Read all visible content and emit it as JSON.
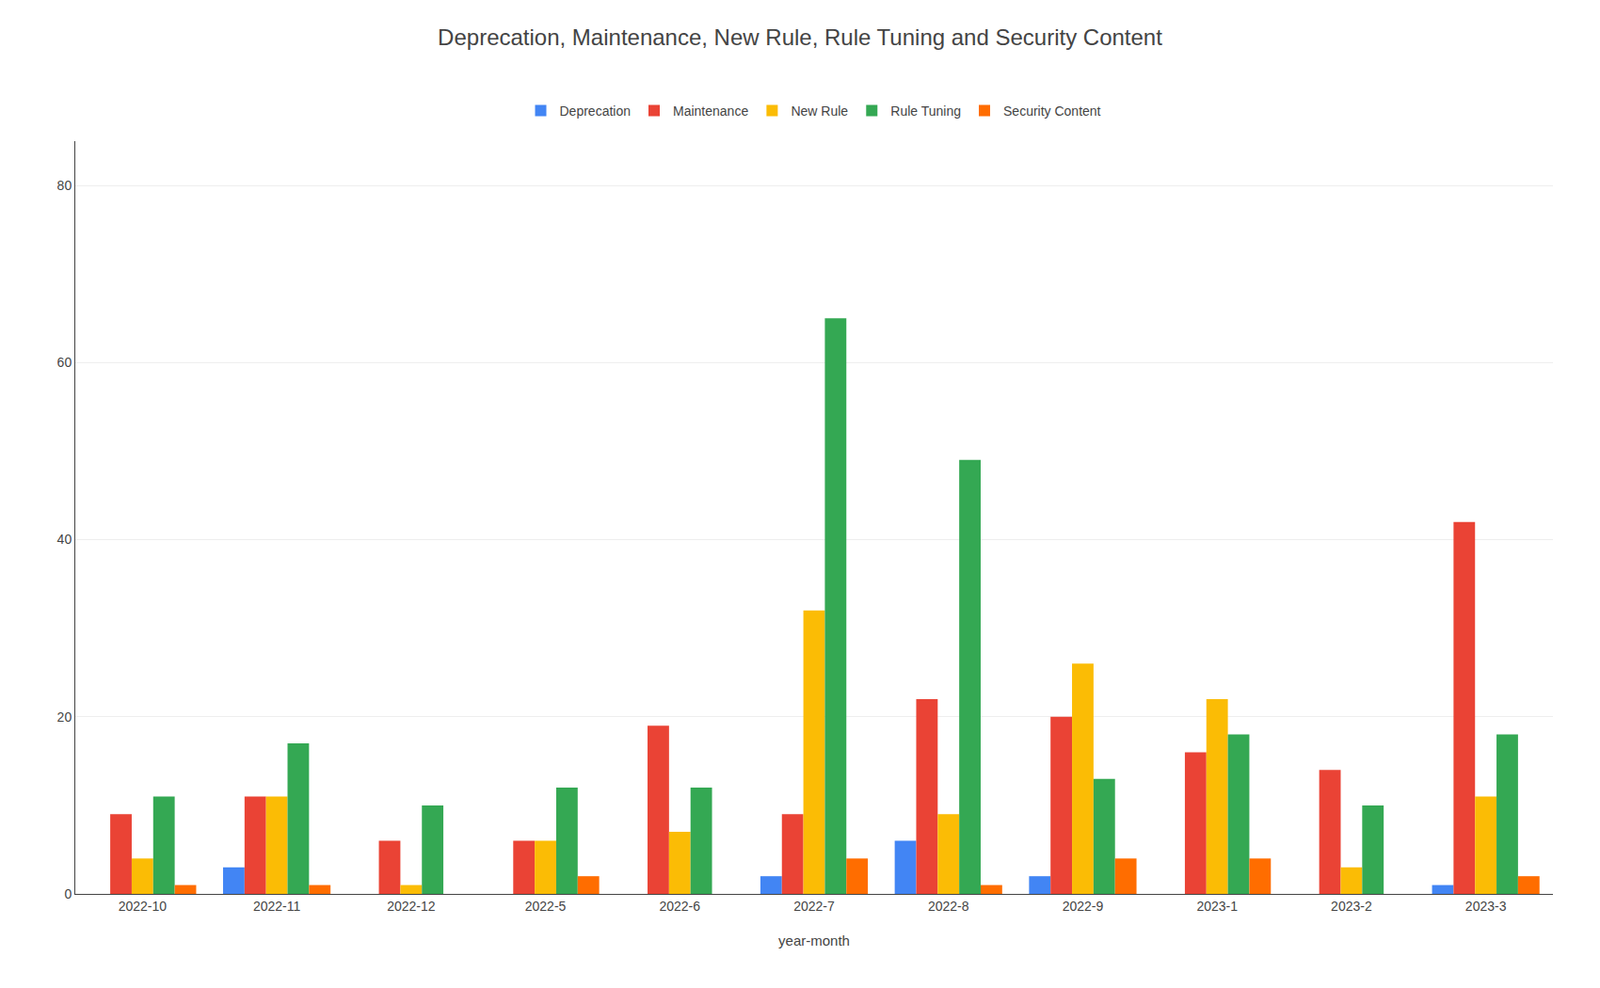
{
  "chart_data": {
    "type": "bar",
    "title": "Deprecation, Maintenance, New Rule, Rule Tuning and Security Content",
    "xlabel": "year-month",
    "categories": [
      "2022-10",
      "2022-11",
      "2022-12",
      "2022-5",
      "2022-6",
      "2022-7",
      "2022-8",
      "2022-9",
      "2023-1",
      "2023-2",
      "2023-3"
    ],
    "series": [
      {
        "name": "Deprecation",
        "color": "#4285F4",
        "values": [
          0,
          3,
          0,
          0,
          0,
          2,
          6,
          2,
          0,
          0,
          1
        ]
      },
      {
        "name": "Maintenance",
        "color": "#EA4335",
        "values": [
          9,
          11,
          6,
          6,
          19,
          9,
          22,
          20,
          16,
          14,
          42
        ]
      },
      {
        "name": "New Rule",
        "color": "#FBBC05",
        "values": [
          4,
          11,
          1,
          6,
          7,
          32,
          9,
          26,
          22,
          3,
          11
        ]
      },
      {
        "name": "Rule Tuning",
        "color": "#34A853",
        "values": [
          11,
          17,
          10,
          12,
          12,
          65,
          49,
          13,
          18,
          10,
          18
        ]
      },
      {
        "name": "Security Content",
        "color": "#FF6D00",
        "values": [
          1,
          1,
          0,
          2,
          0,
          4,
          1,
          4,
          4,
          0,
          2
        ]
      }
    ],
    "ylim": [
      0,
      85
    ],
    "yticks": [
      0,
      20,
      40,
      60,
      80
    ],
    "grid": true,
    "legend": "top"
  }
}
